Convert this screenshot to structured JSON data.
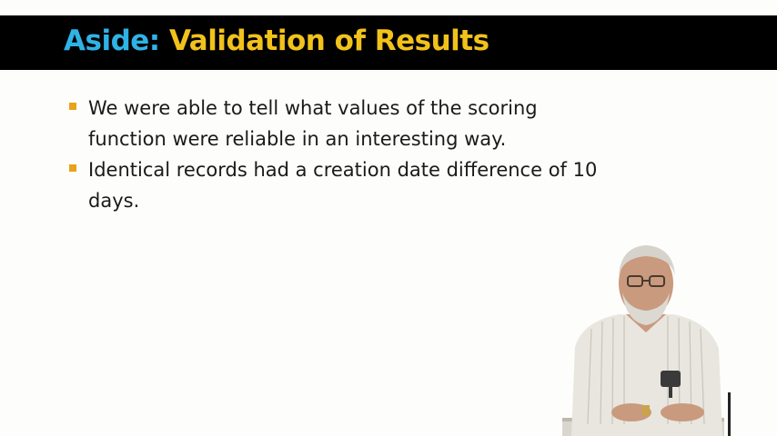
{
  "slide": {
    "title_part_1": "Aside:",
    "title_part_2": " Validation of Results",
    "bullets": [
      "We were able to tell what values of the scoring function were reliable in an interesting way.",
      "Identical records had a creation date difference of 10 days."
    ]
  },
  "colors": {
    "title_bar": "#000000",
    "title_accent_blue": "#2fb3e6",
    "title_accent_yellow": "#f2c21b",
    "bullet_marker": "#e8a317",
    "background": "#fdfdfb"
  }
}
